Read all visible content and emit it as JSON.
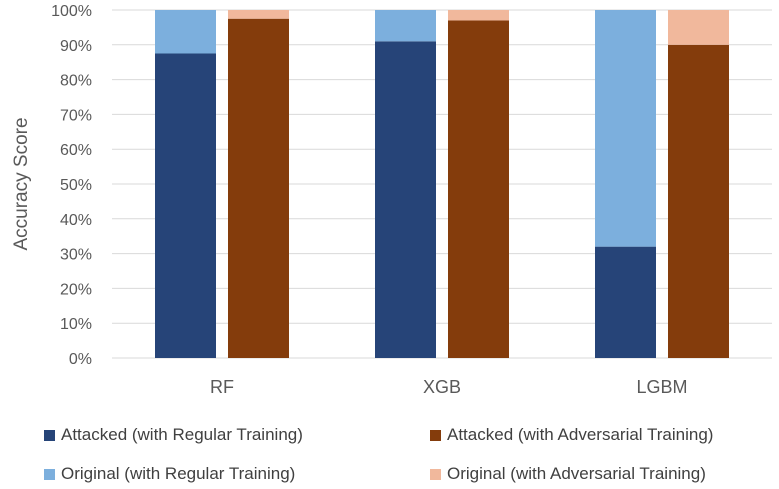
{
  "chart_data": {
    "type": "bar",
    "stacked": true,
    "title": "",
    "xlabel": "",
    "ylabel": "Accuracy Score",
    "ylim": [
      0,
      100
    ],
    "yticks": [
      "0%",
      "10%",
      "20%",
      "30%",
      "40%",
      "50%",
      "60%",
      "70%",
      "80%",
      "90%",
      "100%"
    ],
    "categories": [
      "RF",
      "XGB",
      "LGBM"
    ],
    "groups": [
      {
        "name": "Regular Training",
        "stack": [
          {
            "name": "Attacked (with Regular Training)",
            "color": "#264478",
            "values": [
              87.5,
              91,
              32
            ]
          },
          {
            "name": "Original (with Regular Training)",
            "color": "#7cafdd",
            "values": [
              12.5,
              9,
              68
            ]
          }
        ]
      },
      {
        "name": "Adversarial Training",
        "stack": [
          {
            "name": "Attacked (with Adversarial Training)",
            "color": "#843c0c",
            "values": [
              97.5,
              97,
              90
            ]
          },
          {
            "name": "Original (with Adversarial Training)",
            "color": "#f1b89c",
            "values": [
              2.5,
              3,
              10
            ]
          }
        ]
      }
    ],
    "legend": [
      {
        "name": "Attacked (with Regular Training)",
        "color": "#264478"
      },
      {
        "name": "Attacked (with Adversarial Training)",
        "color": "#843c0c"
      },
      {
        "name": "Original (with Regular Training)",
        "color": "#7cafdd"
      },
      {
        "name": "Original (with Adversarial Training)",
        "color": "#f1b89c"
      }
    ],
    "legend_position": "bottom",
    "grid": true
  }
}
